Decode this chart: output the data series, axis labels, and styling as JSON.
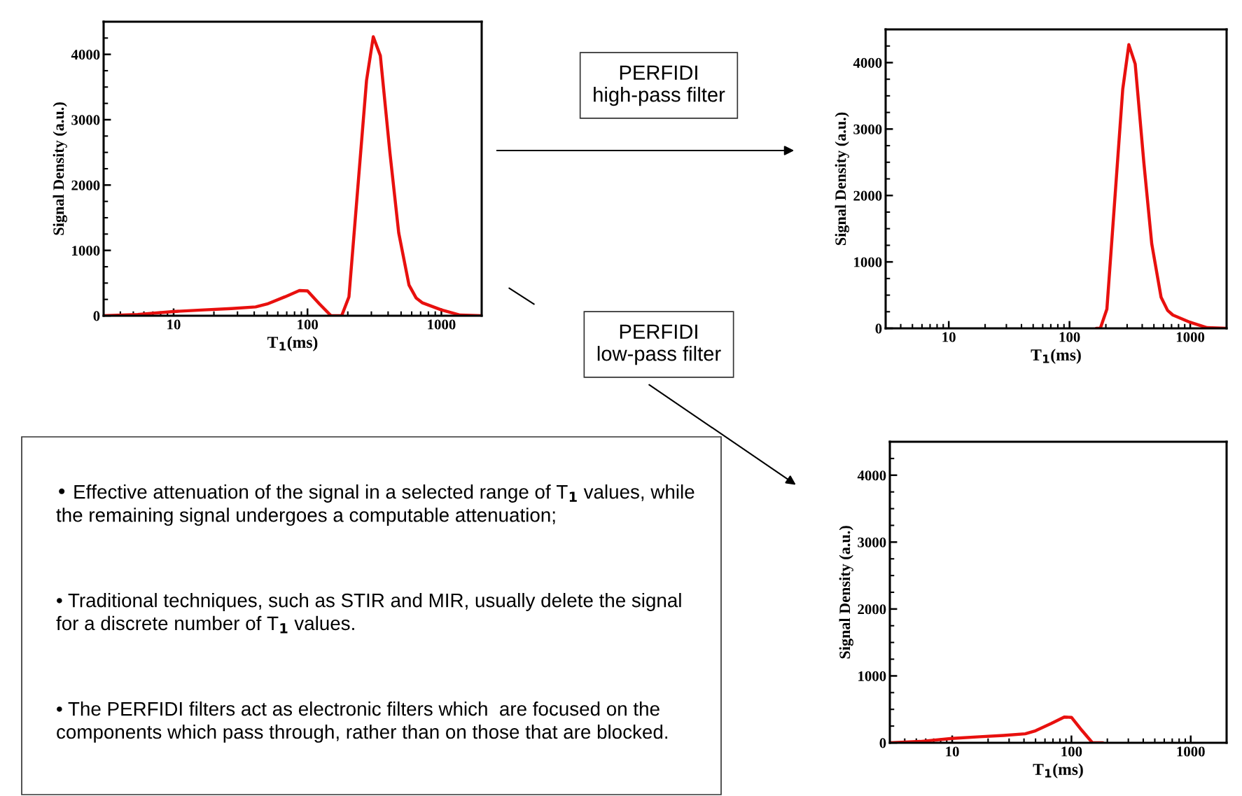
{
  "chart_data": [
    {
      "type": "line",
      "xlabel": "T$_{1}$(ms)",
      "ylabel": "Signal Density (a.u.)",
      "log": "x",
      "xlim": [
        3,
        2000
      ],
      "ylim": [
        0,
        4500
      ],
      "xticks": [
        {
          "value": 4,
          "label": null
        },
        {
          "value": 5,
          "label": null
        },
        {
          "value": 6,
          "label": null
        },
        {
          "value": 7,
          "label": null
        },
        {
          "value": 8,
          "label": null
        },
        {
          "value": 9,
          "label": null
        },
        10,
        {
          "value": 20,
          "label": null
        },
        {
          "value": 30,
          "label": null
        },
        {
          "value": 40,
          "label": null
        },
        {
          "value": 50,
          "label": null
        },
        {
          "value": 60,
          "label": null
        },
        {
          "value": 70,
          "label": null
        },
        {
          "value": 80,
          "label": null
        },
        {
          "value": 90,
          "label": null
        },
        100,
        {
          "value": 200,
          "label": null
        },
        {
          "value": 300,
          "label": null
        },
        {
          "value": 400,
          "label": null
        },
        {
          "value": 500,
          "label": null
        },
        {
          "value": 600,
          "label": null
        },
        {
          "value": 700,
          "label": null
        },
        {
          "value": 800,
          "label": null
        },
        {
          "value": 900,
          "label": null
        },
        1000
      ],
      "yticks": [
        0,
        {
          "value": 250,
          "label": null
        },
        {
          "value": 500,
          "label": null
        },
        {
          "value": 750,
          "label": null
        },
        1000,
        {
          "value": 1250,
          "label": null
        },
        {
          "value": 1500,
          "label": null
        },
        {
          "value": 1750,
          "label": null
        },
        2000,
        {
          "value": 2250,
          "label": null
        },
        {
          "value": 2500,
          "label": null
        },
        {
          "value": 2750,
          "label": null
        },
        3000,
        {
          "value": 3250,
          "label": null
        },
        {
          "value": 3500,
          "label": null
        },
        {
          "value": 3750,
          "label": null
        },
        4000,
        {
          "value": 4250,
          "label": null
        }
      ],
      "grid": false,
      "legend": false,
      "marker": "none",
      "line_style": "solid",
      "series": [
        {
          "color": "#e8100e",
          "x": [
            3,
            5.4,
            10,
            17,
            27,
            41,
            50,
            68,
            87,
            100,
            123,
            150,
            167,
            180,
            204,
            276,
            310,
            350,
            413,
            480,
            573,
            649,
            718,
            1000,
            1380,
            2000
          ],
          "values": [
            0,
            20,
            65,
            90,
            110,
            135,
            180,
            290,
            385,
            380,
            180,
            0,
            0,
            0,
            290,
            3600,
            4270,
            3980,
            2490,
            1270,
            470,
            270,
            200,
            90,
            10,
            0
          ]
        }
      ]
    },
    {
      "type": "line",
      "xlabel": "T$_{1}$(ms)",
      "ylabel": "Signal Density (a.u.)",
      "log": "x",
      "xlim": [
        3,
        2000
      ],
      "ylim": [
        0,
        4500
      ],
      "xticks": [
        {
          "value": 4,
          "label": null
        },
        {
          "value": 5,
          "label": null
        },
        {
          "value": 6,
          "label": null
        },
        {
          "value": 7,
          "label": null
        },
        {
          "value": 8,
          "label": null
        },
        {
          "value": 9,
          "label": null
        },
        10,
        {
          "value": 20,
          "label": null
        },
        {
          "value": 30,
          "label": null
        },
        {
          "value": 40,
          "label": null
        },
        {
          "value": 50,
          "label": null
        },
        {
          "value": 60,
          "label": null
        },
        {
          "value": 70,
          "label": null
        },
        {
          "value": 80,
          "label": null
        },
        {
          "value": 90,
          "label": null
        },
        100,
        {
          "value": 200,
          "label": null
        },
        {
          "value": 300,
          "label": null
        },
        {
          "value": 400,
          "label": null
        },
        {
          "value": 500,
          "label": null
        },
        {
          "value": 600,
          "label": null
        },
        {
          "value": 700,
          "label": null
        },
        {
          "value": 800,
          "label": null
        },
        {
          "value": 900,
          "label": null
        },
        1000
      ],
      "yticks": [
        0,
        {
          "value": 250,
          "label": null
        },
        {
          "value": 500,
          "label": null
        },
        {
          "value": 750,
          "label": null
        },
        1000,
        {
          "value": 1250,
          "label": null
        },
        {
          "value": 1500,
          "label": null
        },
        {
          "value": 1750,
          "label": null
        },
        2000,
        {
          "value": 2250,
          "label": null
        },
        {
          "value": 2500,
          "label": null
        },
        {
          "value": 2750,
          "label": null
        },
        3000,
        {
          "value": 3250,
          "label": null
        },
        {
          "value": 3500,
          "label": null
        },
        {
          "value": 3750,
          "label": null
        },
        4000,
        {
          "value": 4250,
          "label": null
        }
      ],
      "grid": false,
      "legend": false,
      "marker": "none",
      "line_style": "solid",
      "series": [
        {
          "color": "#e8100e",
          "x": [
            167,
            180,
            204,
            276,
            310,
            350,
            413,
            480,
            573,
            649,
            718,
            1000,
            1380,
            2000
          ],
          "values": [
            0,
            0,
            290,
            3600,
            4270,
            3980,
            2490,
            1270,
            470,
            270,
            200,
            90,
            10,
            0
          ]
        }
      ]
    },
    {
      "type": "line",
      "xlabel": "T$_{1}$(ms)",
      "ylabel": "Signal Density (a.u.)",
      "log": "x",
      "xlim": [
        3,
        2000
      ],
      "ylim": [
        0,
        4500
      ],
      "xticks": [
        {
          "value": 4,
          "label": null
        },
        {
          "value": 5,
          "label": null
        },
        {
          "value": 6,
          "label": null
        },
        {
          "value": 7,
          "label": null
        },
        {
          "value": 8,
          "label": null
        },
        {
          "value": 9,
          "label": null
        },
        10,
        {
          "value": 20,
          "label": null
        },
        {
          "value": 30,
          "label": null
        },
        {
          "value": 40,
          "label": null
        },
        {
          "value": 50,
          "label": null
        },
        {
          "value": 60,
          "label": null
        },
        {
          "value": 70,
          "label": null
        },
        {
          "value": 80,
          "label": null
        },
        {
          "value": 90,
          "label": null
        },
        100,
        {
          "value": 200,
          "label": null
        },
        {
          "value": 300,
          "label": null
        },
        {
          "value": 400,
          "label": null
        },
        {
          "value": 500,
          "label": null
        },
        {
          "value": 600,
          "label": null
        },
        {
          "value": 700,
          "label": null
        },
        {
          "value": 800,
          "label": null
        },
        {
          "value": 900,
          "label": null
        },
        1000
      ],
      "yticks": [
        0,
        {
          "value": 250,
          "label": null
        },
        {
          "value": 500,
          "label": null
        },
        {
          "value": 750,
          "label": null
        },
        1000,
        {
          "value": 1250,
          "label": null
        },
        {
          "value": 1500,
          "label": null
        },
        {
          "value": 1750,
          "label": null
        },
        2000,
        {
          "value": 2250,
          "label": null
        },
        {
          "value": 2500,
          "label": null
        },
        {
          "value": 2750,
          "label": null
        },
        3000,
        {
          "value": 3250,
          "label": null
        },
        {
          "value": 3500,
          "label": null
        },
        {
          "value": 3750,
          "label": null
        },
        4000,
        {
          "value": 4250,
          "label": null
        }
      ],
      "grid": false,
      "legend": false,
      "marker": "none",
      "line_style": "solid",
      "series": [
        {
          "color": "#e8100e",
          "x": [
            3,
            5.4,
            10,
            17,
            27,
            41,
            50,
            68,
            87,
            100,
            123,
            150,
            167,
            183
          ],
          "values": [
            0,
            20,
            65,
            90,
            110,
            135,
            180,
            290,
            385,
            380,
            180,
            0,
            0,
            0
          ]
        }
      ]
    },
    {
      "type": "other",
      "annotations": [
        "PERFIDI\nhigh-pass filter",
        "PERFIDI\nlow-pass filter",
        "• Effective attenuation of the signal in a selected range of T$_{1}$ values, while the remaining signal undergoes a computable attenuation;",
        "• Traditional techniques, such as STIR and MIR, usually delete the signal for a discrete number of T$_{1}$ values.",
        "• The PERFIDI filters act as electronic filters which  are focused on the components which pass through, rather than on those that are blocked."
      ]
    }
  ]
}
